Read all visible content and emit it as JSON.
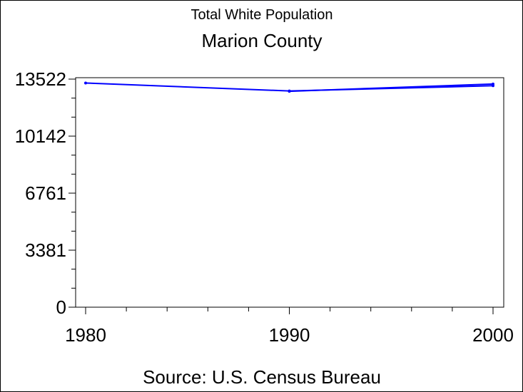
{
  "chart_data": {
    "type": "line",
    "title": "Total White Population",
    "subtitle": "Marion County",
    "footnote": "Source: U.S. Census Bureau",
    "xlabel": "",
    "ylabel": "",
    "x_ticks": [
      "1980",
      "1990",
      "2000"
    ],
    "y_ticks": [
      "0",
      "3381",
      "6761",
      "10142",
      "13522"
    ],
    "xlim": [
      1980,
      2000
    ],
    "ylim": [
      0,
      13522
    ],
    "grid": false,
    "legend": "none",
    "series": [
      {
        "color": "#0000ff",
        "x": [
          1980,
          1990,
          2000
        ],
        "y": [
          13290,
          12820,
          13130
        ]
      },
      {
        "color": "#0000ff",
        "x": [
          1990,
          2000
        ],
        "y": [
          12800,
          13230
        ]
      }
    ]
  }
}
